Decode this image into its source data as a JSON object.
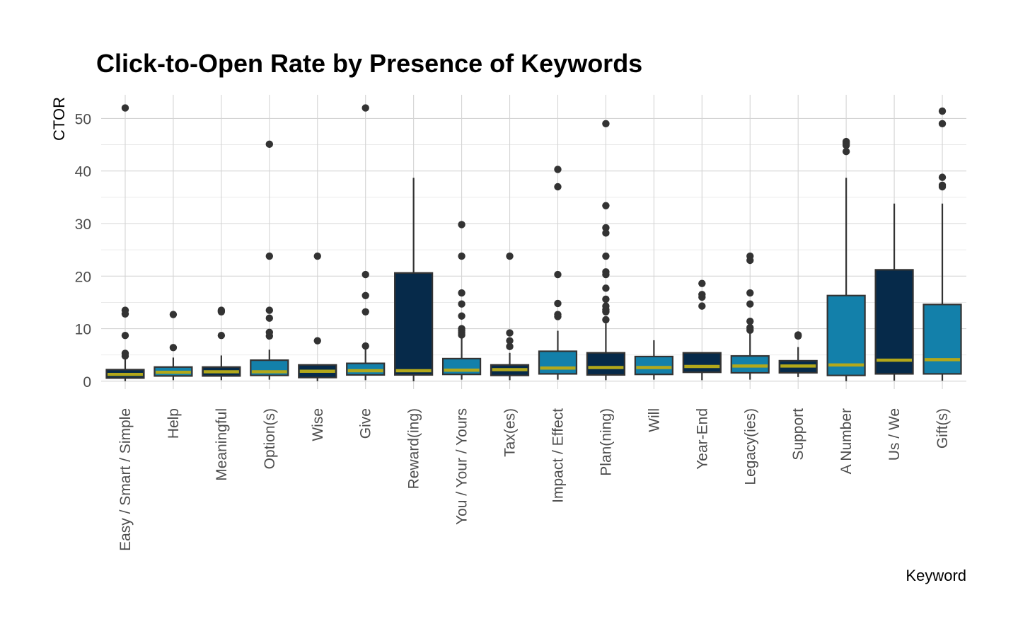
{
  "chart_data": {
    "type": "boxplot",
    "title": "Click-to-Open Rate by Presence of Keywords",
    "xlabel": "Keyword",
    "ylabel": "CTOR",
    "ylim": [
      -1.5,
      54.5
    ],
    "yticks": [
      0,
      10,
      20,
      30,
      40,
      50
    ],
    "grid": true,
    "legend": "none",
    "colors": {
      "light": "#1380aa",
      "dark": "#062a4a",
      "median": "#b3a81a",
      "outline": "#333333"
    },
    "categories": [
      "Easy / Smart / Simple",
      "Help",
      "Meaningful",
      "Option(s)",
      "Wise",
      "Give",
      "Reward(ing)",
      "You / Your / Yours",
      "Tax(es)",
      "Impact / Effect",
      "Plan(ning)",
      "Will",
      "Year-End",
      "Legacy(ies)",
      "Support",
      "A Number",
      "Us / We",
      "Gift(s)"
    ],
    "boxes": [
      {
        "category": "Easy / Smart / Simple",
        "fill": "dark",
        "whisker_low": 0,
        "q1": 0.6,
        "median": 1.3,
        "q3": 2.2,
        "whisker_high": 4.2,
        "outliers": [
          52,
          13.5,
          12.8,
          8.7,
          5.3,
          4.8
        ]
      },
      {
        "category": "Help",
        "fill": "light",
        "whisker_low": 0.2,
        "q1": 1.0,
        "median": 1.7,
        "q3": 2.7,
        "whisker_high": 4.5,
        "outliers": [
          12.7,
          6.4
        ]
      },
      {
        "category": "Meaningful",
        "fill": "dark",
        "whisker_low": 0.2,
        "q1": 1.0,
        "median": 1.8,
        "q3": 2.7,
        "whisker_high": 4.9,
        "outliers": [
          13.5,
          13.2,
          8.7
        ]
      },
      {
        "category": "Option(s)",
        "fill": "light",
        "whisker_low": 0.3,
        "q1": 1.1,
        "median": 1.8,
        "q3": 4.0,
        "whisker_high": 6.0,
        "outliers": [
          45.1,
          23.8,
          13.5,
          12.0,
          9.3,
          8.6
        ]
      },
      {
        "category": "Wise",
        "fill": "dark",
        "whisker_low": 0,
        "q1": 0.7,
        "median": 1.9,
        "q3": 3.1,
        "whisker_high": 3.1,
        "outliers": [
          23.8,
          7.7
        ]
      },
      {
        "category": "Give",
        "fill": "light",
        "whisker_low": 0.2,
        "q1": 1.2,
        "median": 2.0,
        "q3": 3.4,
        "whisker_high": 6.3,
        "outliers": [
          52,
          20.3,
          16.3,
          13.2,
          6.7
        ]
      },
      {
        "category": "Reward(ing)",
        "fill": "dark",
        "whisker_low": 0,
        "q1": 1.2,
        "median": 2.0,
        "q3": 20.6,
        "whisker_high": 38.7,
        "outliers": []
      },
      {
        "category": "You / Your / Yours",
        "fill": "light",
        "whisker_low": 0.3,
        "q1": 1.3,
        "median": 2.1,
        "q3": 4.3,
        "whisker_high": 8.3,
        "outliers": [
          29.8,
          23.8,
          16.8,
          14.7,
          12.4,
          10.0,
          9.6,
          9.2,
          8.8
        ]
      },
      {
        "category": "Tax(es)",
        "fill": "dark",
        "whisker_low": 0.2,
        "q1": 1.1,
        "median": 2.2,
        "q3": 3.1,
        "whisker_high": 5.4,
        "outliers": [
          23.8,
          9.2,
          7.7,
          6.6
        ]
      },
      {
        "category": "Impact / Effect",
        "fill": "light",
        "whisker_low": 0.3,
        "q1": 1.4,
        "median": 2.5,
        "q3": 5.7,
        "whisker_high": 9.6,
        "outliers": [
          40.3,
          37.0,
          20.3,
          14.8,
          12.7,
          12.3
        ]
      },
      {
        "category": "Plan(ning)",
        "fill": "dark",
        "whisker_low": 0.2,
        "q1": 1.2,
        "median": 2.6,
        "q3": 5.4,
        "whisker_high": 11.0,
        "outliers": [
          49.0,
          33.4,
          29.2,
          28.2,
          23.8,
          20.8,
          20.3,
          17.7,
          15.6,
          14.3,
          13.6,
          13.2,
          11.7
        ]
      },
      {
        "category": "Will",
        "fill": "light",
        "whisker_low": 0.3,
        "q1": 1.3,
        "median": 2.6,
        "q3": 4.7,
        "whisker_high": 7.8,
        "outliers": []
      },
      {
        "category": "Year-End",
        "fill": "dark",
        "whisker_low": 0.2,
        "q1": 1.7,
        "median": 2.8,
        "q3": 5.4,
        "whisker_high": 5.4,
        "outliers": [
          18.6,
          16.5,
          16.0,
          14.3
        ]
      },
      {
        "category": "Legacy(ies)",
        "fill": "light",
        "whisker_low": 0.3,
        "q1": 1.6,
        "median": 2.9,
        "q3": 4.8,
        "whisker_high": 9.2,
        "outliers": [
          23.8,
          23.0,
          16.8,
          14.7,
          11.4,
          10.2,
          9.7
        ]
      },
      {
        "category": "Support",
        "fill": "dark",
        "whisker_low": 0.8,
        "q1": 1.6,
        "median": 2.9,
        "q3": 3.9,
        "whisker_high": 6.5,
        "outliers": [
          8.8,
          8.6
        ]
      },
      {
        "category": "A Number",
        "fill": "light",
        "whisker_low": 0,
        "q1": 1.1,
        "median": 3.1,
        "q3": 16.3,
        "whisker_high": 38.7,
        "outliers": [
          45.6,
          45.3,
          44.9,
          43.7
        ]
      },
      {
        "category": "Us / We",
        "fill": "dark",
        "whisker_low": 0.1,
        "q1": 1.4,
        "median": 4.0,
        "q3": 21.2,
        "whisker_high": 33.8,
        "outliers": []
      },
      {
        "category": "Gift(s)",
        "fill": "light",
        "whisker_low": 0.1,
        "q1": 1.4,
        "median": 4.1,
        "q3": 14.6,
        "whisker_high": 33.8,
        "outliers": [
          51.4,
          49.0,
          38.8,
          37.3,
          37.0
        ]
      }
    ]
  }
}
